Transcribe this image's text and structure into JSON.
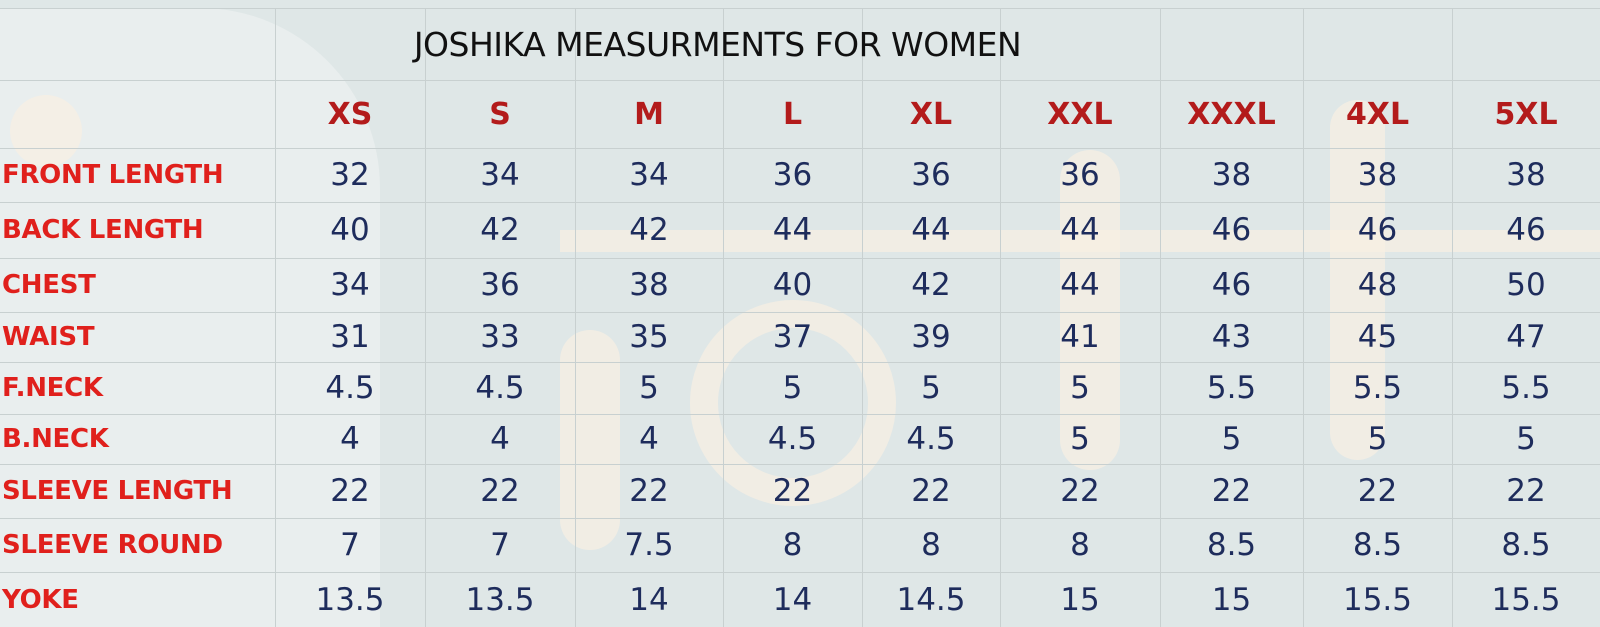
{
  "table": {
    "title": "JOSHIKA MEASURMENTS FOR WOMEN",
    "columns": [
      "XS",
      "S",
      "M",
      "L",
      "XL",
      "XXL",
      "XXXL",
      "4XL",
      "5XL"
    ],
    "rows": [
      {
        "label": "FRONT LENGTH",
        "values": [
          32,
          34,
          34,
          36,
          36,
          36,
          38,
          38,
          38
        ]
      },
      {
        "label": "BACK LENGTH",
        "values": [
          40,
          42,
          42,
          44,
          44,
          44,
          46,
          46,
          46
        ]
      },
      {
        "label": "CHEST",
        "values": [
          34,
          36,
          38,
          40,
          42,
          44,
          46,
          48,
          50
        ]
      },
      {
        "label": "WAIST",
        "values": [
          31,
          33,
          35,
          37,
          39,
          41,
          43,
          45,
          47
        ]
      },
      {
        "label": "F.NECK",
        "values": [
          4.5,
          4.5,
          5,
          5,
          5,
          5,
          5.5,
          5.5,
          5.5
        ]
      },
      {
        "label": "B.NECK",
        "values": [
          4,
          4,
          4,
          4.5,
          4.5,
          5,
          5,
          5,
          5
        ]
      },
      {
        "label": "SLEEVE LENGTH",
        "values": [
          22,
          22,
          22,
          22,
          22,
          22,
          22,
          22,
          22
        ]
      },
      {
        "label": "SLEEVE ROUND",
        "values": [
          7,
          7,
          7.5,
          8,
          8,
          8,
          8.5,
          8.5,
          8.5
        ]
      },
      {
        "label": "YOKE",
        "values": [
          13.5,
          13.5,
          14,
          14,
          14.5,
          15,
          15,
          15.5,
          15.5
        ]
      }
    ]
  }
}
